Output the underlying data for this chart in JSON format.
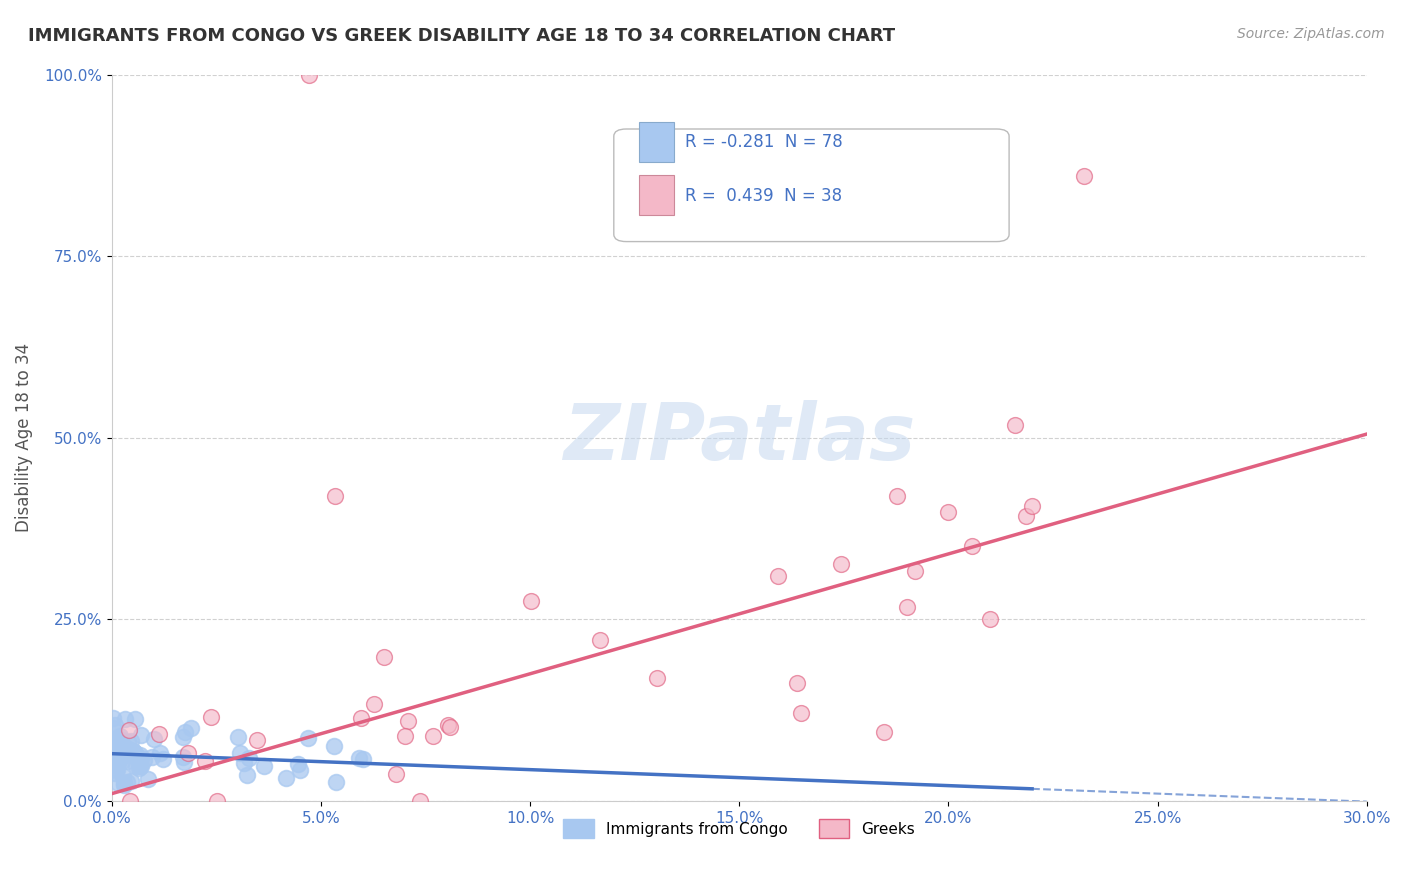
{
  "title": "IMMIGRANTS FROM CONGO VS GREEK DISABILITY AGE 18 TO 34 CORRELATION CHART",
  "source": "Source: ZipAtlas.com",
  "ylabel": "Disability Age 18 to 34",
  "r_congo": -0.281,
  "n_congo": 78,
  "r_greek": 0.439,
  "n_greek": 38,
  "background_color": "#ffffff",
  "grid_color": "#cccccc",
  "blue_color": "#a8c8f0",
  "blue_dark": "#4472c4",
  "pink_color": "#f4b8c8",
  "pink_dark": "#e06080",
  "congo_slope": -0.22,
  "congo_intercept": 0.065,
  "greek_slope": 1.65,
  "greek_intercept": 0.01
}
